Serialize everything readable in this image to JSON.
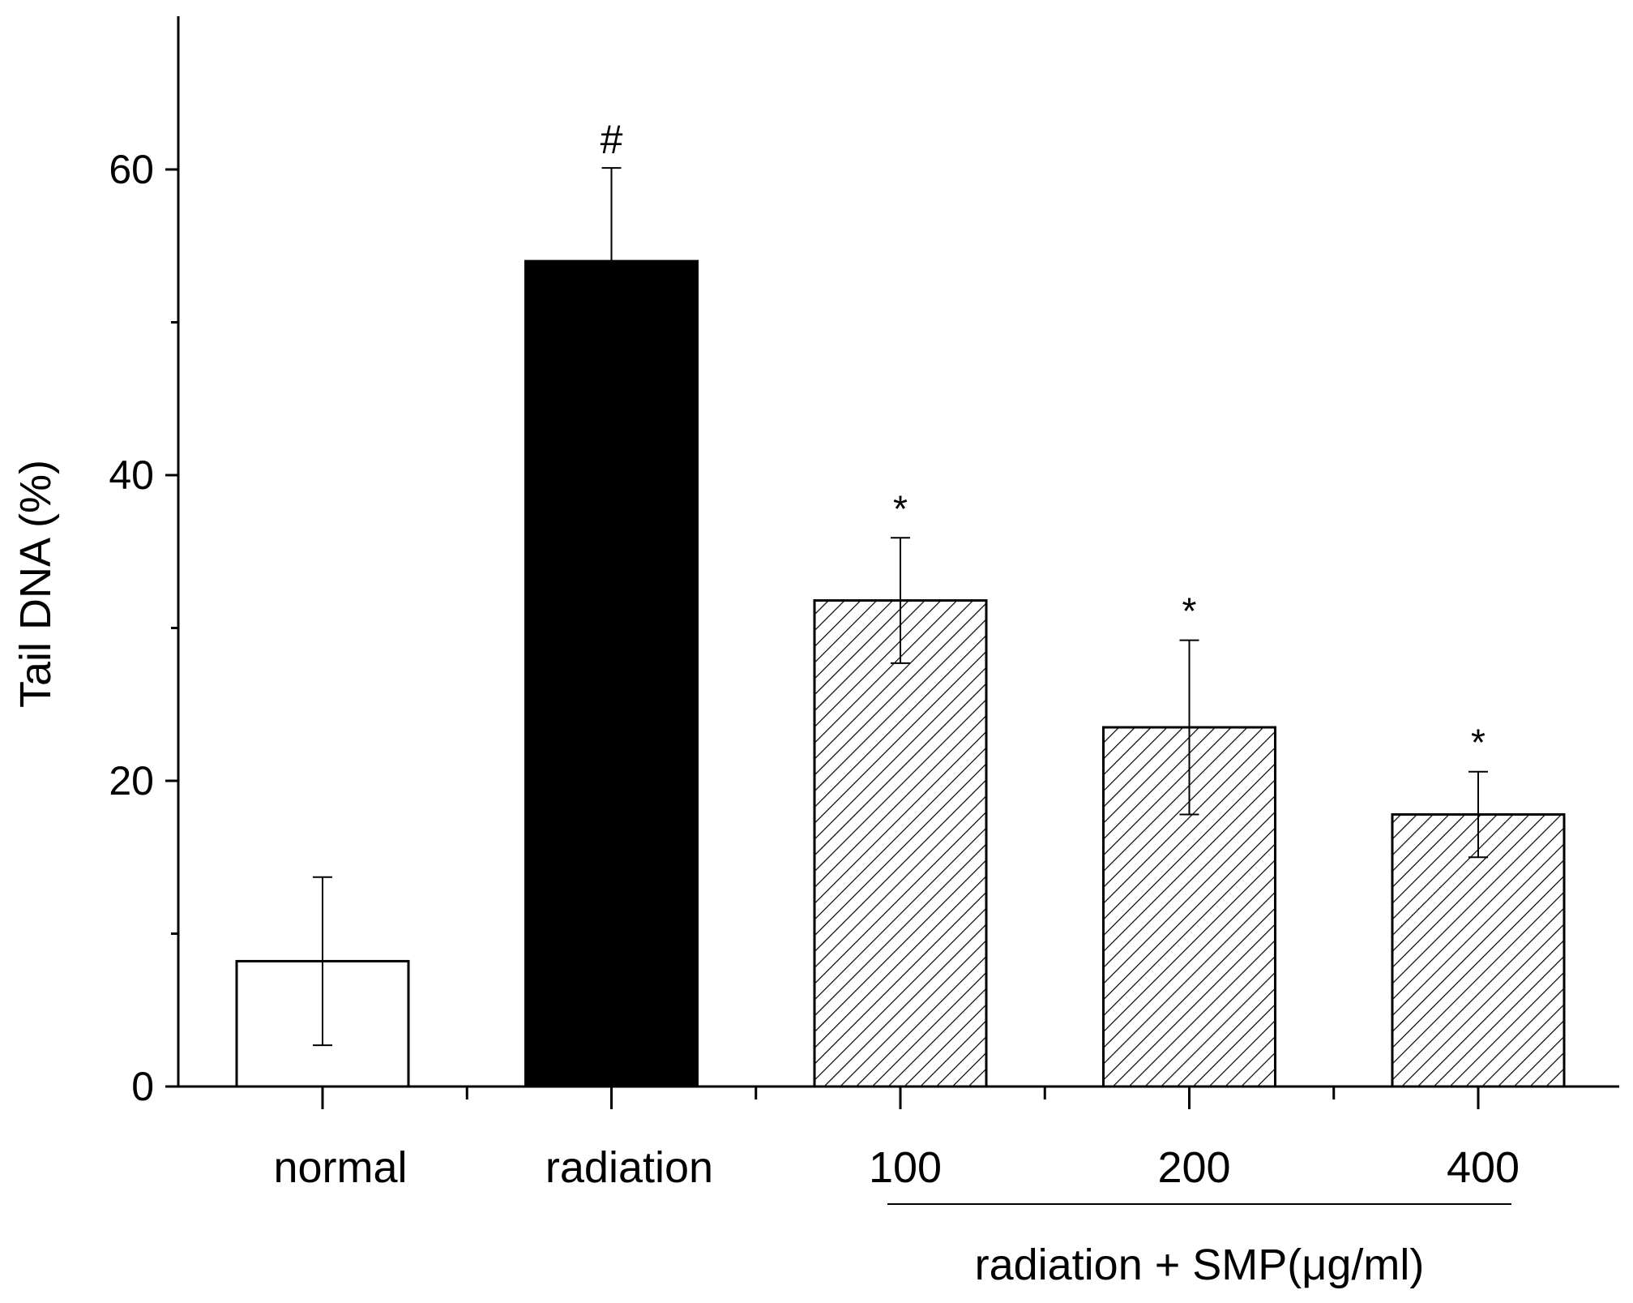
{
  "chart_data": {
    "type": "bar",
    "title": "",
    "xlabel": "",
    "ylabel": "Tail DNA (%)",
    "ylim": [
      0,
      70
    ],
    "yticks": [
      0,
      20,
      40,
      60
    ],
    "grid": false,
    "categories": [
      "normal",
      "radiation",
      "100",
      "200",
      "400"
    ],
    "values": [
      8.2,
      54.0,
      31.8,
      23.5,
      17.8
    ],
    "errors": [
      5.5,
      6.1,
      4.1,
      5.7,
      2.8
    ],
    "fills": [
      "white",
      "black",
      "hatch",
      "hatch",
      "hatch"
    ],
    "significance": [
      "",
      "#",
      "*",
      "*",
      "*"
    ],
    "group_label": "radiation + SMP(μg/ml)",
    "group_categories": [
      "100",
      "200",
      "400"
    ]
  },
  "colors": {
    "axis": "#000000",
    "bar_solid": "#000000",
    "bar_empty": "#ffffff"
  }
}
